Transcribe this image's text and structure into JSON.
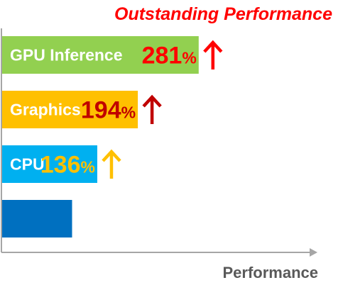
{
  "chart_data": {
    "type": "bar",
    "orientation": "horizontal",
    "title": "Outstanding Performance",
    "xlabel": "Performance",
    "ylabel": "",
    "categories": [
      "GPU Inference",
      "Graphics",
      "CPU",
      ""
    ],
    "values": [
      281,
      194,
      136,
      100
    ],
    "value_labels": [
      "281",
      "194",
      "136",
      ""
    ],
    "value_unit": "%",
    "xlim": [
      0,
      420
    ],
    "grid": false,
    "legend": "none",
    "bar_colors": [
      "#92d050",
      "#ffc000",
      "#00b0f0",
      "#0070c0"
    ],
    "value_label_colors": [
      "#ff0000",
      "#c00000",
      "#ffc000",
      ""
    ],
    "arrow_icons": [
      "arrow-up-icon",
      "arrow-up-icon",
      "arrow-up-icon",
      ""
    ],
    "title_color": "#ff0000",
    "axis_color": "#a6a6a6"
  }
}
